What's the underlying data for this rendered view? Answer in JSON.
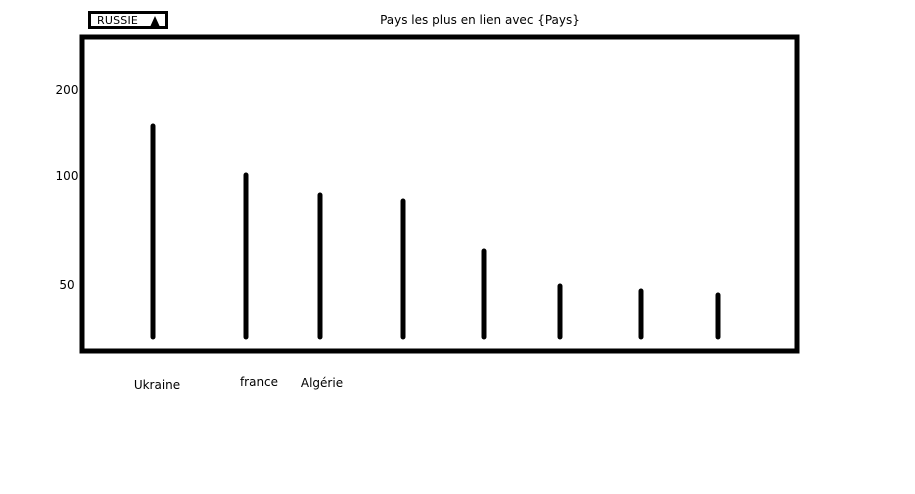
{
  "dropdown": {
    "selected": "RUSSIE"
  },
  "chart_data": {
    "type": "bar",
    "title": "Pays les plus en lien avec {Pays}",
    "xlabel": "",
    "ylabel": "",
    "yticks": [
      "200",
      "100",
      "50"
    ],
    "categories": [
      "Ukraine",
      "france",
      "Algérie",
      "",
      "",
      "",
      "",
      ""
    ],
    "values": [
      160,
      100,
      90,
      87,
      62,
      45,
      43,
      41
    ]
  }
}
